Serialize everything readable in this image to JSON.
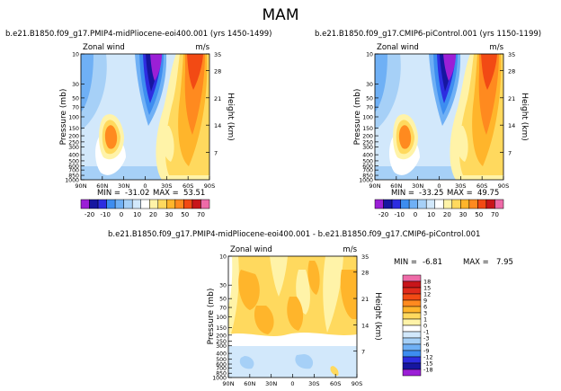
{
  "figure_title": "MAM",
  "chart_data": [
    {
      "type": "contour",
      "title": "b.e21.B1850.f09_g17.PMIP4-midPliocene-eoi400.001  (yrs 1450-1499)",
      "left_label": "Zonal wind",
      "units": "m/s",
      "xlabel": "",
      "ylabel": "Pressure  (mb)",
      "y2label": "Height  (km)",
      "x_ticks": [
        "90N",
        "60N",
        "30N",
        "0",
        "30S",
        "60S",
        "90S"
      ],
      "y_ticks": [
        "10",
        "30",
        "50",
        "70",
        "100",
        "150",
        "200",
        "250",
        "300",
        "400",
        "500",
        "600",
        "700",
        "850",
        "1000"
      ],
      "y2_ticks": [
        "35",
        "28",
        "21",
        "14",
        "7"
      ],
      "stats": {
        "min_label": "MIN =",
        "min": "-31.02",
        "max_label": "MAX =",
        "max": "53.51"
      },
      "colorbar": {
        "labels": [
          "-20",
          "-10",
          "0",
          "10",
          "20",
          "30",
          "50",
          "70"
        ],
        "colors": [
          "#9b1fd6",
          "#1616a0",
          "#2d2de0",
          "#3d8df0",
          "#6fb0f5",
          "#a6d0f7",
          "#d2e8fb",
          "#ffffff",
          "#fff3a8",
          "#ffd95e",
          "#ffb52b",
          "#ff8a1f",
          "#f24a14",
          "#c8151a",
          "#ee6ba8"
        ]
      }
    },
    {
      "type": "contour",
      "title": "b.e21.B1850.f09_g17.CMIP6-piControl.001  (yrs 1150-1199)",
      "left_label": "Zonal wind",
      "units": "m/s",
      "xlabel": "",
      "ylabel": "Pressure  (mb)",
      "y2label": "Height  (km)",
      "x_ticks": [
        "90N",
        "60N",
        "30N",
        "0",
        "30S",
        "60S",
        "90S"
      ],
      "y_ticks": [
        "10",
        "30",
        "50",
        "70",
        "100",
        "150",
        "200",
        "250",
        "300",
        "400",
        "500",
        "600",
        "700",
        "850",
        "1000"
      ],
      "y2_ticks": [
        "35",
        "28",
        "21",
        "14",
        "7"
      ],
      "stats": {
        "min_label": "MIN =",
        "min": "-33.25",
        "max_label": "MAX =",
        "max": "49.75"
      },
      "colorbar": {
        "labels": [
          "-20",
          "-10",
          "0",
          "10",
          "20",
          "30",
          "50",
          "70"
        ],
        "colors": [
          "#9b1fd6",
          "#1616a0",
          "#2d2de0",
          "#3d8df0",
          "#6fb0f5",
          "#a6d0f7",
          "#d2e8fb",
          "#ffffff",
          "#fff3a8",
          "#ffd95e",
          "#ffb52b",
          "#ff8a1f",
          "#f24a14",
          "#c8151a",
          "#ee6ba8"
        ]
      }
    },
    {
      "type": "contour",
      "title": "b.e21.B1850.f09_g17.PMIP4-midPliocene-eoi400.001  -  b.e21.B1850.f09_g17.CMIP6-piControl.001",
      "left_label": "Zonal wind",
      "units": "m/s",
      "xlabel": "",
      "ylabel": "Pressure  (mb)",
      "y2label": "Height  (km)",
      "x_ticks": [
        "90N",
        "60N",
        "30N",
        "0",
        "30S",
        "60S",
        "90S"
      ],
      "y_ticks": [
        "10",
        "30",
        "50",
        "70",
        "100",
        "150",
        "200",
        "250",
        "300",
        "400",
        "500",
        "600",
        "700",
        "850",
        "1000"
      ],
      "y2_ticks": [
        "35",
        "28",
        "21",
        "14",
        "7"
      ],
      "stats": {
        "min_label": "MIN =",
        "min": "-6.81",
        "max_label": "MAX =",
        "max": "7.95"
      },
      "colorbar": {
        "labels": [
          "18",
          "15",
          "12",
          "9",
          "6",
          "3",
          "1",
          "0",
          "-1",
          "-3",
          "-6",
          "-9",
          "-12",
          "-15",
          "-18"
        ],
        "colors": [
          "#ee6ba8",
          "#c8151a",
          "#e02a1c",
          "#f24a14",
          "#ff8a1f",
          "#ffb52b",
          "#ffd95e",
          "#fff3a8",
          "#ffffff",
          "#d2e8fb",
          "#a6d0f7",
          "#6fb0f5",
          "#3d8df0",
          "#2d2de0",
          "#1616a0",
          "#9b1fd6"
        ]
      }
    }
  ]
}
